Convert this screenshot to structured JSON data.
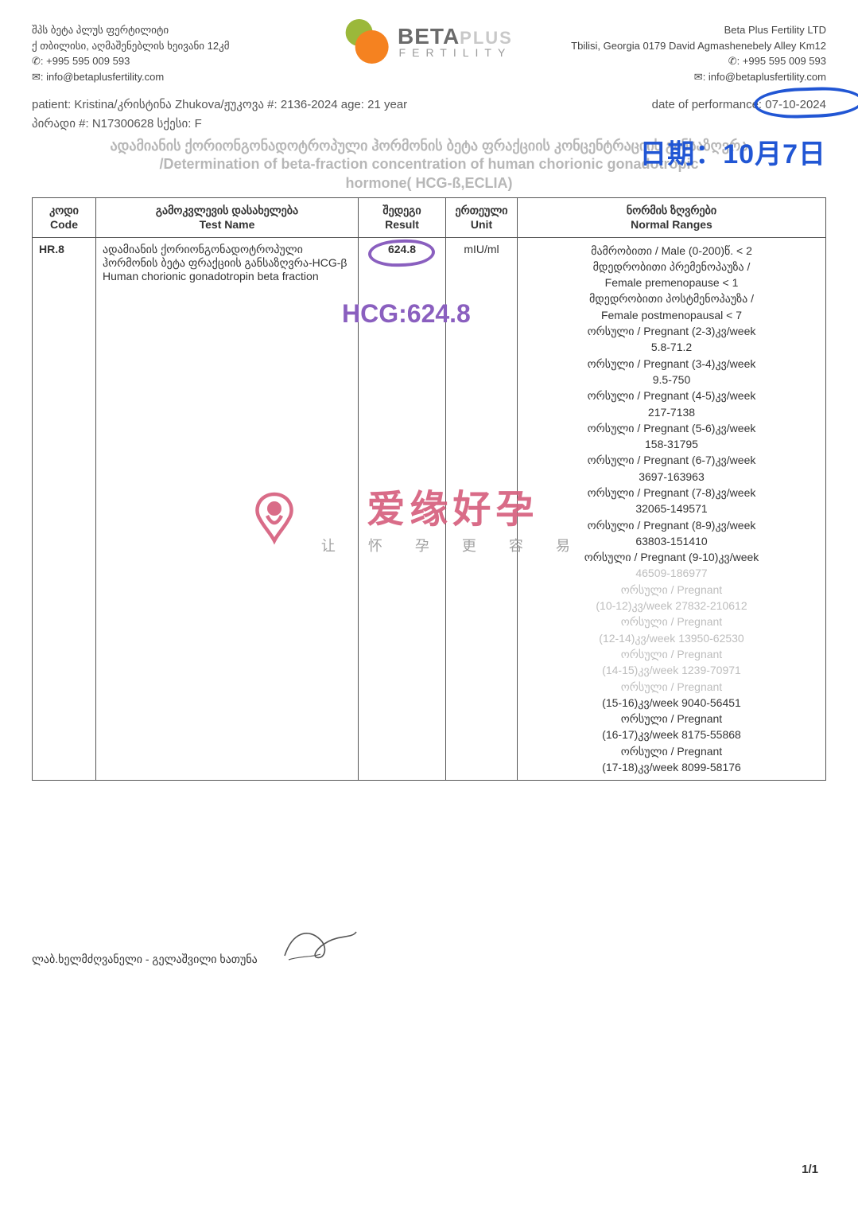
{
  "clinic": {
    "name_ka": "შპს ბეტა პლუს ფერტილიტი",
    "address_ka": "ქ თბილისი, აღმაშენებლის ხეივანი 12კმ",
    "phone": "✆: +995 595 009 593",
    "email": "✉: info@betaplusfertility.com",
    "name_en": "Beta Plus Fertility LTD",
    "address_en": "Tbilisi, Georgia 0179 David Agmashenebely Alley Km12",
    "logo_main": "BETA",
    "logo_plus": "PLUS",
    "logo_sub": "FERTILITY"
  },
  "patient": {
    "line1_left": "patient: Kristina/კრისტინა Zhukova/ჟუკოვა #: 2136-2024    age: 21 year",
    "line1_right_label": "date of performance: ",
    "date": "07-10-2024",
    "line2": "პირადი #: N17300628 სქესი: F"
  },
  "title": {
    "ka": "ადამიანის ქორიონგონადოტროპული ჰორმონის ბეტა ფრაქციის კონცენტრაციის განსაზღვრა",
    "en": "/Determination of beta-fraction concentration of human chorionic gonadotropic",
    "en2": "hormone( HCG-ß,ECLIA)"
  },
  "annotations": {
    "date_cn": "日期：10月7日",
    "hcg": "HCG:624.8",
    "circle_color_date": "#2156d4",
    "circle_color_hcg": "#8a5fbf"
  },
  "table": {
    "headers": {
      "code": "კოდი\nCode",
      "name": "გამოკვლევის დასახელება\nTest Name",
      "result": "შედეგი\nResult",
      "unit": "ერთეული\nUnit",
      "ranges": "ნორმის ზღვრები\nNormal Ranges"
    },
    "row": {
      "code": "HR.8",
      "name": "ადამიანის ქორიონგონადოტროპული ჰორმონის ბეტა ფრაქციის განსაზღვრა-HCG-β Human chorionic gonadotropin beta fraction",
      "result": "624.8",
      "unit": "mIU/ml",
      "ranges_normal": [
        "მამრობითი / Male (0-200)წ. < 2",
        "მდედრობითი პრემენოპაუზა /",
        "Female premenopause < 1",
        "მდედრობითი პოსტმენოპაუზა /",
        "Female postmenopausal < 7",
        "ორსული / Pregnant (2-3)კვ/week",
        "5.8-71.2",
        "ორსული / Pregnant (3-4)კვ/week",
        "9.5-750",
        "ორსული / Pregnant (4-5)კვ/week",
        "217-7138",
        "ორსული / Pregnant (5-6)კვ/week",
        "158-31795",
        "ორსული / Pregnant (6-7)კვ/week",
        "3697-163963",
        "ორსული / Pregnant (7-8)კვ/week",
        "32065-149571",
        "ორსული / Pregnant (8-9)კვ/week",
        "63803-151410",
        "ორსული / Pregnant (9-10)კვ/week"
      ],
      "ranges_faded": [
        "46509-186977",
        "ორსული / Pregnant",
        "(10-12)კვ/week 27832-210612",
        "ორსული / Pregnant",
        "(12-14)კვ/week 13950-62530",
        "ორსული / Pregnant",
        "(14-15)კვ/week 1239-70971",
        "ორსული / Pregnant"
      ],
      "ranges_tail": [
        "(15-16)კვ/week 9040-56451",
        "ორსული / Pregnant",
        "(16-17)კვ/week 8175-55868",
        "ორსული / Pregnant",
        "(17-18)კვ/week 8099-58176"
      ]
    }
  },
  "watermark": {
    "cn": "爱缘好孕",
    "sub": "让  怀  孕  更  容  易",
    "color_pink": "#d6607e"
  },
  "signature": {
    "label": "ლაბ.ხელმძღვანელი - გელაშვილი ხათუნა"
  },
  "page_num": "1/1",
  "colors": {
    "bg": "#ffffff",
    "text": "#333333",
    "faded": "#bdbdbd",
    "border": "#555555",
    "logo_green": "#9bb83a",
    "logo_orange": "#f58220"
  }
}
